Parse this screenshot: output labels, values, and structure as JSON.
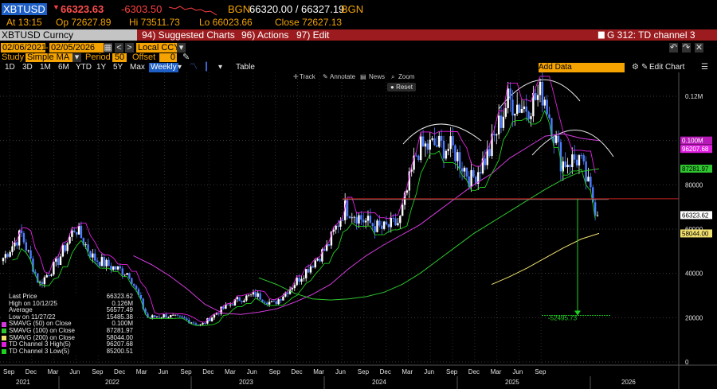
{
  "quote": {
    "ticker": "XBTUSD",
    "price": "66323.63",
    "change": "-6303.50",
    "bgn_label": "BGN",
    "bid_ask": "66320.00 / 66327.19",
    "bgn_label2": "BGN",
    "at": "At 13:15",
    "open": "Op 72627.89",
    "high": "Hi 73511.73",
    "low": "Lo 66023.66",
    "close": "Close 72627.13"
  },
  "menu": {
    "security": "XBTUSD Curncy",
    "suggested": "94) Suggested Charts",
    "actions": "96) Actions",
    "edit": "97) Edit",
    "graph": "G 312: TD channel 3"
  },
  "controls": {
    "start_date": "02/06/2021",
    "end_date": "02/05/2026",
    "currency": "Local CCY",
    "study_label": "Study",
    "study": "Simple MA",
    "period_label": "Period",
    "period": "50",
    "offset_label": "Offset",
    "offset": "0",
    "ranges": [
      "1D",
      "3D",
      "1M",
      "6M",
      "YTD",
      "1Y",
      "5Y",
      "Max"
    ],
    "frequency": "Weekly",
    "table": "Table",
    "add_data": "Add Data",
    "edit_chart": "Edit Chart"
  },
  "tools": {
    "track": "Track",
    "annotate": "Annotate",
    "news": "News",
    "zoom": "Zoom",
    "reset": "Reset"
  },
  "legend": [
    {
      "label": "Last Price",
      "value": "66323.62",
      "color": "#ffffff"
    },
    {
      "label": "High on 10/12/25",
      "value": "0.126M",
      "color": "#ffffff"
    },
    {
      "label": "Average",
      "value": "56577.49",
      "color": "#ffffff"
    },
    {
      "label": "Low on 11/27/22",
      "value": "15485.38",
      "color": "#ffffff"
    },
    {
      "label": "SMAVG (50)  on Close",
      "value": "0.100M",
      "color": "#d63be0"
    },
    {
      "label": "SMAVG (100)  on Close",
      "value": "87281.97",
      "color": "#2fc62f"
    },
    {
      "label": "SMAVG (200)  on Close",
      "value": "58044.00",
      "color": "#f0e070"
    },
    {
      "label": "TD Channel 3 High(5)",
      "value": "96207.68",
      "color": "#e020e0"
    },
    {
      "label": "TD Channel 3 Low(5)",
      "value": "85200.51",
      "color": "#20d020"
    }
  ],
  "axis": {
    "y_ticks": [
      {
        "v": 0,
        "t": "0"
      },
      {
        "v": 20000,
        "t": "20000"
      },
      {
        "v": 40000,
        "t": "40000"
      },
      {
        "v": 60000,
        "t": "60000"
      },
      {
        "v": 80000,
        "t": "80000"
      },
      {
        "v": 120000,
        "t": "0.12M"
      }
    ],
    "value_tags": [
      {
        "v": 100000,
        "t": "0.100M",
        "bg": "#b81ab8",
        "fg": "#ffffff"
      },
      {
        "v": 96208,
        "t": "96207.68",
        "bg": "#e020e0",
        "fg": "#ffffff"
      },
      {
        "v": 87282,
        "t": "87281.97",
        "bg": "#2fc62f",
        "fg": "#000000"
      },
      {
        "v": 66324,
        "t": "66323.62",
        "bg": "#ffffff",
        "fg": "#000000"
      },
      {
        "v": 58044,
        "t": "58044.00",
        "bg": "#f0e070",
        "fg": "#000000"
      }
    ],
    "months": [
      "Sep",
      "Dec",
      "Mar",
      "Jun",
      "Sep",
      "Dec",
      "Mar",
      "Jun",
      "Sep",
      "Dec",
      "Mar",
      "Jun",
      "Sep",
      "Dec",
      "Mar",
      "Jun",
      "Sep",
      "Dec",
      "Mar",
      "Jun",
      "Sep",
      "Dec",
      "Mar",
      "Jun",
      "Sep"
    ],
    "years": [
      "2021",
      "2022",
      "2023",
      "2024",
      "2025",
      "2026"
    ],
    "target_label": "-52495.73"
  },
  "colors": {
    "accent": "#f4a300",
    "menubar": "#9b1b1e",
    "up_candle": "#ffffff",
    "down_candle": "#4d7cff",
    "sma50": "#d63be0",
    "sma100": "#2fc62f",
    "sma200": "#f0e070",
    "td_high": "#e020e0",
    "td_low": "#20d020"
  },
  "chart_data": {
    "type": "line",
    "title": "",
    "xlabel": "",
    "ylabel": "",
    "ylim": [
      -1000,
      126000
    ],
    "x": [
      "2021-02",
      "2021-04",
      "2021-06",
      "2021-08",
      "2021-10",
      "2021-12",
      "2022-02",
      "2022-04",
      "2022-06",
      "2022-08",
      "2022-10",
      "2022-12",
      "2023-02",
      "2023-04",
      "2023-06",
      "2023-08",
      "2023-10",
      "2023-12",
      "2024-02",
      "2024-03",
      "2024-05",
      "2024-07",
      "2024-09",
      "2024-11",
      "2024-12",
      "2025-02",
      "2025-04",
      "2025-05",
      "2025-07",
      "2025-08",
      "2025-10",
      "2025-11",
      "2026-01",
      "2026-02"
    ],
    "series": [
      {
        "name": "Last Price",
        "values": [
          47000,
          58000,
          35000,
          45000,
          61000,
          47000,
          43000,
          40000,
          20000,
          21000,
          19500,
          16500,
          23000,
          28000,
          30500,
          26000,
          34000,
          43000,
          52000,
          70000,
          64000,
          60000,
          63000,
          96000,
          98000,
          96000,
          82000,
          95000,
          118000,
          115000,
          122000,
          90000,
          92000,
          66324
        ]
      },
      {
        "name": "SMAVG (50)  on Close",
        "values": [
          null,
          null,
          null,
          null,
          null,
          null,
          null,
          48000,
          44000,
          39000,
          33000,
          26000,
          22000,
          21500,
          22500,
          24000,
          27000,
          30500,
          35000,
          42000,
          48000,
          53000,
          57500,
          62000,
          68000,
          74000,
          80000,
          85000,
          92000,
          97000,
          102000,
          103000,
          101000,
          100000
        ]
      },
      {
        "name": "SMAVG (100)  on Close",
        "values": [
          null,
          null,
          null,
          null,
          null,
          null,
          null,
          null,
          null,
          null,
          null,
          null,
          null,
          null,
          38000,
          35000,
          31000,
          28500,
          28000,
          28500,
          29500,
          31500,
          35000,
          40000,
          46000,
          52000,
          58000,
          63000,
          68000,
          73000,
          78000,
          82500,
          86000,
          87282
        ]
      },
      {
        "name": "SMAVG (200)  on Close",
        "values": [
          null,
          null,
          null,
          null,
          null,
          null,
          null,
          null,
          null,
          null,
          null,
          null,
          null,
          null,
          null,
          null,
          null,
          null,
          null,
          null,
          null,
          null,
          null,
          null,
          null,
          null,
          null,
          35000,
          38500,
          42500,
          47000,
          51500,
          55500,
          58044
        ]
      }
    ],
    "horizontal_lines": [
      {
        "label": "",
        "value": 73700,
        "color": "#c02020"
      },
      {
        "label": "",
        "value": 21000,
        "color": "#20d020"
      }
    ],
    "target_arrow": {
      "from": 73700,
      "to": 21000,
      "label": "-52495.73"
    },
    "grid": true,
    "legend_position": "bottom-left"
  }
}
